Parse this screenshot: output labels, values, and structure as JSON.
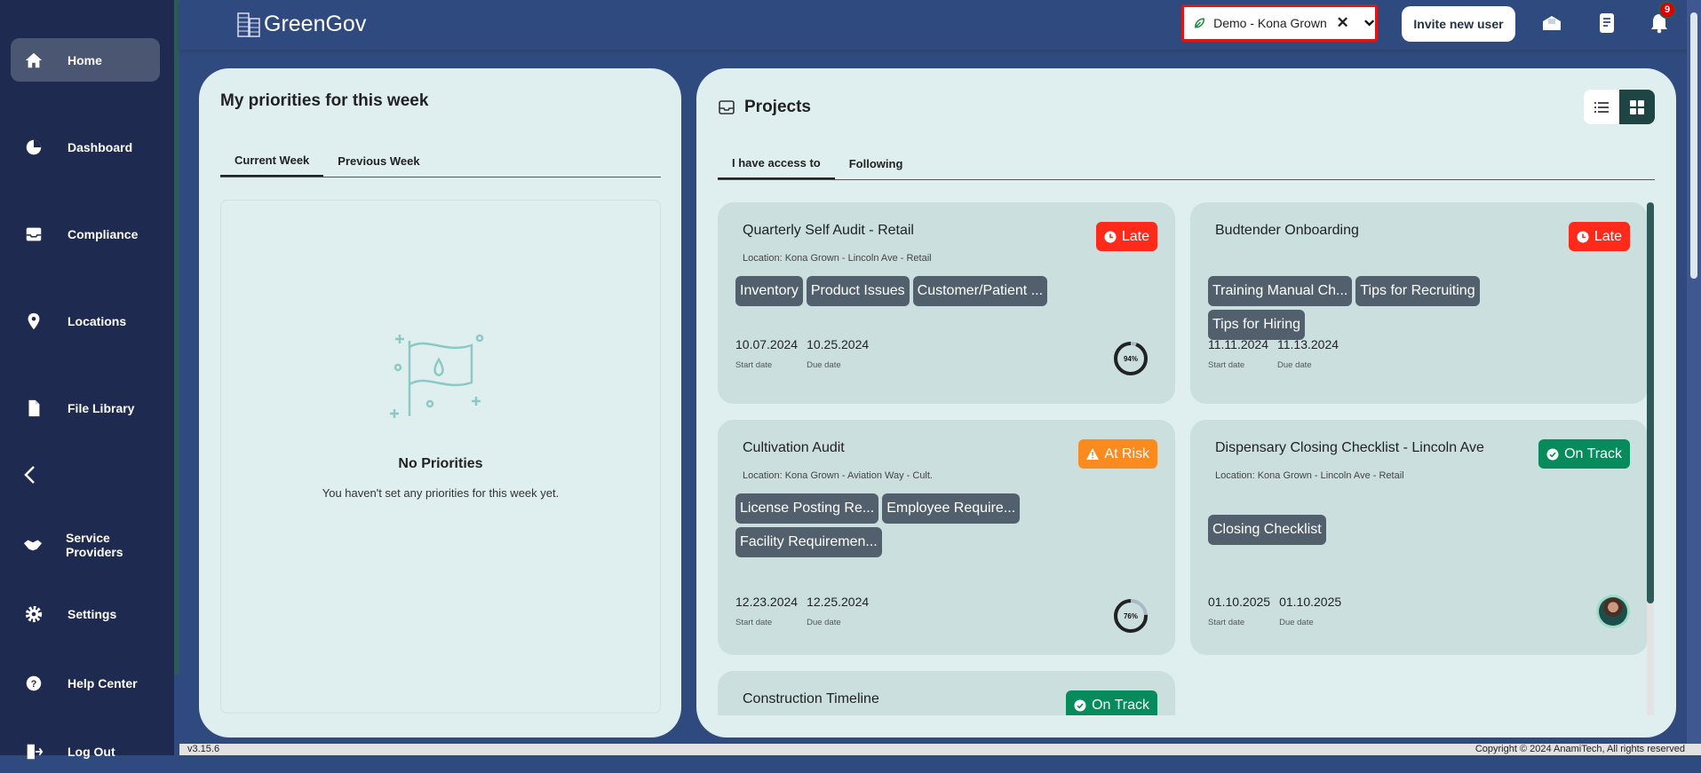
{
  "app": {
    "name": "GreenGov",
    "version": "v3.15.6",
    "copyright": "Copyright © 2024 AnamiTech, All rights reserved"
  },
  "sidebar": {
    "items": [
      {
        "label": "Home",
        "icon": "home-icon",
        "active": true
      },
      {
        "label": "Dashboard",
        "icon": "pie-chart-icon"
      },
      {
        "label": "Compliance",
        "icon": "inbox-icon"
      },
      {
        "label": "Locations",
        "icon": "map-pin-icon"
      },
      {
        "label": "File Library",
        "icon": "file-icon"
      },
      {
        "label": "Service Providers",
        "icon": "handshake-icon"
      },
      {
        "label": "Settings",
        "icon": "gear-icon"
      },
      {
        "label": "Help Center",
        "icon": "help-icon"
      },
      {
        "label": "Log Out",
        "icon": "logout-icon"
      }
    ],
    "collapse_icon": "chevron-left-icon"
  },
  "header": {
    "org_select": "Demo - Kona Grown",
    "invite_label": "Invite new user",
    "notification_count": "9"
  },
  "priorities": {
    "title": "My priorities for this week",
    "tabs": [
      "Current Week",
      "Previous Week"
    ],
    "active_tab": 0,
    "empty_title": "No Priorities",
    "empty_text": "You haven't set any priorities for this week yet."
  },
  "projects": {
    "title": "Projects",
    "tabs": [
      "I have access to",
      "Following"
    ],
    "active_tab": 0,
    "view": "grid",
    "start_label": "Start date",
    "due_label": "Due date",
    "status_colors": {
      "Late": "#ff2a1a",
      "At Risk": "#fb8a1f",
      "On Track": "#078a5c"
    },
    "cards": [
      {
        "title": "Quarterly Self Audit - Retail",
        "location": "Location: Kona Grown - Lincoln Ave - Retail",
        "status": "Late",
        "tags": [
          "Inventory",
          "Product Issues",
          "Customer/Patient ..."
        ],
        "start": "10.07.2024",
        "due": "10.25.2024",
        "progress": 94,
        "progress_label": "94%"
      },
      {
        "title": "Budtender Onboarding",
        "location": "",
        "status": "Late",
        "tags": [
          "Training Manual Ch...",
          "Tips for Recruiting",
          "Tips for Hiring"
        ],
        "start": "11.11.2024",
        "due": "11.13.2024"
      },
      {
        "title": "Cultivation Audit",
        "location": "Location: Kona Grown - Aviation Way - Cult.",
        "status": "At Risk",
        "tags": [
          "License Posting Re...",
          "Employee Require...",
          "Facility Requiremen..."
        ],
        "start": "12.23.2024",
        "due": "12.25.2024",
        "progress": 76,
        "progress_label": "76%"
      },
      {
        "title": "Dispensary Closing Checklist - Lincoln Ave",
        "location": "Location: Kona Grown - Lincoln Ave - Retail",
        "status": "On Track",
        "tags": [
          "Closing Checklist"
        ],
        "start": "01.10.2025",
        "due": "01.10.2025",
        "avatar": true
      },
      {
        "title": "Construction Timeline",
        "location": "",
        "status": "On Track",
        "tags": []
      }
    ]
  }
}
